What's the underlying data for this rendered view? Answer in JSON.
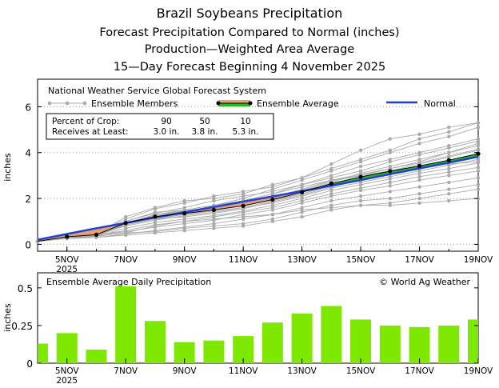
{
  "titles": {
    "line1": "Brazil Soybeans Precipitation",
    "line2": "Forecast Precipitation Compared to Normal (inches)",
    "line3": "Production—Weighted Area Average",
    "line4": "15—Day Forecast Beginning 4 November 2025"
  },
  "colors": {
    "normal": "#1f3fd6",
    "ensemble_member": "#aaaaaa",
    "ensemble_average": "#000000",
    "above_normal_fill": "#22bb22",
    "below_normal_fill": "#e8a070",
    "bar": "#7fe800"
  },
  "chart_data": [
    {
      "type": "line",
      "source": "National Weather Service Global Forecast System",
      "ylabel": "inches",
      "ylim": [
        -0.3,
        7.2
      ],
      "yticks": [
        0,
        2,
        4,
        6
      ],
      "x": [
        4,
        5,
        6,
        7,
        8,
        9,
        10,
        11,
        12,
        13,
        14,
        15,
        16,
        17,
        18,
        19
      ],
      "xlim": [
        4,
        19
      ],
      "xticks": [
        {
          "x": 5,
          "label": "5NOV",
          "sub": "2025"
        },
        {
          "x": 7,
          "label": "7NOV"
        },
        {
          "x": 9,
          "label": "9NOV"
        },
        {
          "x": 11,
          "label": "11NOV"
        },
        {
          "x": 13,
          "label": "13NOV"
        },
        {
          "x": 15,
          "label": "15NOV"
        },
        {
          "x": 17,
          "label": "17NOV"
        },
        {
          "x": 19,
          "label": "19NOV"
        }
      ],
      "legend": {
        "members": "Ensemble Members",
        "average": "Ensemble Average",
        "normal": "Normal"
      },
      "crop_table": {
        "row1_label": "Percent of Crop:",
        "row2_label": "Receives at Least:",
        "percents": [
          "90",
          "50",
          "10"
        ],
        "amounts": [
          "3.0 in.",
          "3.8 in.",
          "5.3 in."
        ]
      },
      "series": [
        {
          "name": "Normal",
          "values": [
            0.2,
            0.45,
            0.7,
            0.93,
            1.17,
            1.4,
            1.63,
            1.86,
            2.09,
            2.32,
            2.56,
            2.8,
            3.06,
            3.31,
            3.56,
            3.82
          ]
        },
        {
          "name": "Ensemble Average",
          "values": [
            0.13,
            0.33,
            0.42,
            0.93,
            1.21,
            1.35,
            1.5,
            1.68,
            1.95,
            2.27,
            2.65,
            2.94,
            3.19,
            3.42,
            3.67,
            3.95
          ]
        }
      ],
      "ensemble_members": [
        [
          0.13,
          0.35,
          0.45,
          1.2,
          1.6,
          1.9,
          2.0,
          2.2,
          2.6,
          2.9,
          3.3,
          3.7,
          4.1,
          4.6,
          4.9,
          5.3
        ],
        [
          0.13,
          0.35,
          0.5,
          1.1,
          1.55,
          1.8,
          2.1,
          2.3,
          2.5,
          2.9,
          3.5,
          4.1,
          4.6,
          4.8,
          5.1,
          5.3
        ],
        [
          0.13,
          0.3,
          0.4,
          1.0,
          1.4,
          1.5,
          1.7,
          2.0,
          2.4,
          2.8,
          3.2,
          3.6,
          4.0,
          4.4,
          4.7,
          5.1
        ],
        [
          0.13,
          0.4,
          0.45,
          0.9,
          1.3,
          1.45,
          1.65,
          1.9,
          2.2,
          2.6,
          3.0,
          3.4,
          3.7,
          4.0,
          4.3,
          4.6
        ],
        [
          0.13,
          0.3,
          0.4,
          0.95,
          1.2,
          1.35,
          1.5,
          1.7,
          2.0,
          2.3,
          2.7,
          3.1,
          3.4,
          3.7,
          4.0,
          4.3
        ],
        [
          0.13,
          0.35,
          0.4,
          0.9,
          1.15,
          1.3,
          1.45,
          1.6,
          1.9,
          2.2,
          2.6,
          2.9,
          3.2,
          3.5,
          3.8,
          4.1
        ],
        [
          0.13,
          0.3,
          0.35,
          0.85,
          1.1,
          1.2,
          1.35,
          1.55,
          1.85,
          2.15,
          2.5,
          2.8,
          3.05,
          3.35,
          3.6,
          3.9
        ],
        [
          0.13,
          0.3,
          0.4,
          0.8,
          1.05,
          1.25,
          1.4,
          1.6,
          1.8,
          2.1,
          2.45,
          2.7,
          2.95,
          3.2,
          3.45,
          3.7
        ],
        [
          0.13,
          0.25,
          0.35,
          0.7,
          0.95,
          1.1,
          1.25,
          1.45,
          1.7,
          2.0,
          2.35,
          2.6,
          2.85,
          3.1,
          3.3,
          3.55
        ],
        [
          0.13,
          0.3,
          0.4,
          0.6,
          0.85,
          1.0,
          1.2,
          1.4,
          1.6,
          1.9,
          2.2,
          2.45,
          2.7,
          2.95,
          3.15,
          3.35
        ],
        [
          0.13,
          0.35,
          0.4,
          0.55,
          0.75,
          0.9,
          1.05,
          1.3,
          1.5,
          1.8,
          2.1,
          2.35,
          2.55,
          2.8,
          3.0,
          3.2
        ],
        [
          0.13,
          0.25,
          0.3,
          0.45,
          0.6,
          0.75,
          0.9,
          1.1,
          1.3,
          1.6,
          1.9,
          2.1,
          2.3,
          2.5,
          2.7,
          2.9
        ],
        [
          0.13,
          0.3,
          0.35,
          0.5,
          0.55,
          0.7,
          0.8,
          0.9,
          1.1,
          1.4,
          1.7,
          1.9,
          2.0,
          2.2,
          2.4,
          2.6
        ],
        [
          0.13,
          0.25,
          0.3,
          0.4,
          0.5,
          0.6,
          0.7,
          0.8,
          1.0,
          1.2,
          1.5,
          1.7,
          1.8,
          2.0,
          2.2,
          2.4
        ],
        [
          0.13,
          0.3,
          0.35,
          0.5,
          0.8,
          1.0,
          1.1,
          1.2,
          1.3,
          1.5,
          1.6,
          1.7,
          1.7,
          1.8,
          1.9,
          2.0
        ],
        [
          0.13,
          0.3,
          0.4,
          0.9,
          1.3,
          1.5,
          1.7,
          1.9,
          2.2,
          2.5,
          2.8,
          3.0,
          3.2,
          3.4,
          3.5,
          3.6
        ],
        [
          0.13,
          0.35,
          0.45,
          1.0,
          1.35,
          1.6,
          1.9,
          2.1,
          2.3,
          2.6,
          2.9,
          3.2,
          3.6,
          3.9,
          4.2,
          4.5
        ],
        [
          0.13,
          0.3,
          0.4,
          0.95,
          1.25,
          1.45,
          1.55,
          1.75,
          2.05,
          2.4,
          2.8,
          3.05,
          3.3,
          3.55,
          3.85,
          4.15
        ],
        [
          0.13,
          0.3,
          0.4,
          0.85,
          1.1,
          1.3,
          1.5,
          1.7,
          1.95,
          2.2,
          2.55,
          2.85,
          3.1,
          3.35,
          3.6,
          3.8
        ],
        [
          0.13,
          0.3,
          0.4,
          0.9,
          1.2,
          1.4,
          1.6,
          1.8,
          2.1,
          2.35,
          2.75,
          3.0,
          3.3,
          3.6,
          4.0,
          4.4
        ]
      ]
    },
    {
      "type": "bar",
      "title": "Ensemble Average Daily Precipitation",
      "credit": "© World Ag Weather",
      "ylabel": "inches",
      "ylim": [
        0,
        0.6
      ],
      "yticks": [
        {
          "v": 0,
          "label": "0"
        },
        {
          "v": 0.25,
          "label": "0.25"
        },
        {
          "v": 0.5,
          "label": "0.5"
        }
      ],
      "x": [
        4,
        5,
        6,
        7,
        8,
        9,
        10,
        11,
        12,
        13,
        14,
        15,
        16,
        17,
        18,
        19
      ],
      "values": [
        0.13,
        0.2,
        0.09,
        0.51,
        0.28,
        0.14,
        0.15,
        0.18,
        0.27,
        0.33,
        0.38,
        0.29,
        0.25,
        0.24,
        0.25,
        0.29
      ],
      "xticks": [
        {
          "x": 5,
          "label": "5NOV",
          "sub": "2025"
        },
        {
          "x": 7,
          "label": "7NOV"
        },
        {
          "x": 9,
          "label": "9NOV"
        },
        {
          "x": 11,
          "label": "11NOV"
        },
        {
          "x": 13,
          "label": "13NOV"
        },
        {
          "x": 15,
          "label": "15NOV"
        },
        {
          "x": 17,
          "label": "17NOV"
        },
        {
          "x": 19,
          "label": "19NOV"
        }
      ]
    }
  ]
}
